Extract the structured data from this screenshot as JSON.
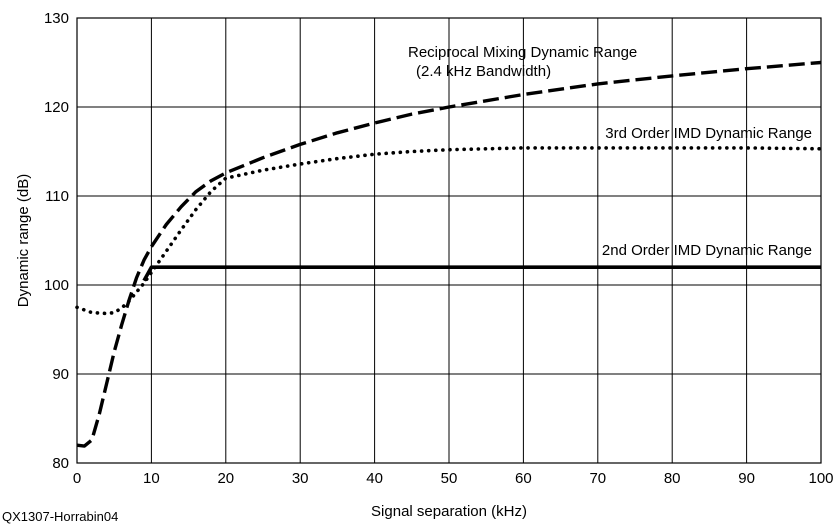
{
  "chart_data": {
    "type": "line",
    "xlabel": "Signal separation (kHz)",
    "ylabel": "Dynamic range (dB)",
    "xlim": [
      0,
      100
    ],
    "ylim": [
      80,
      130
    ],
    "xticks": [
      0,
      10,
      20,
      30,
      40,
      50,
      60,
      70,
      80,
      90,
      100
    ],
    "yticks": [
      80,
      90,
      100,
      110,
      120,
      130
    ],
    "grid": true,
    "legend": "none",
    "credit": "QX1307-Horrabin04",
    "series": [
      {
        "name": "Reciprocal Mixing Dynamic Range",
        "subname": "(2.4 kHz Bandwidth)",
        "style": "dashed",
        "x": [
          0,
          1,
          2,
          3,
          4,
          5,
          6,
          7,
          8,
          9,
          10,
          12,
          14,
          16,
          18,
          20,
          25,
          30,
          35,
          40,
          45,
          50,
          60,
          70,
          80,
          90,
          100
        ],
        "y": [
          82,
          81.9,
          82.6,
          85.5,
          89,
          92.5,
          95.5,
          98.3,
          100.8,
          102.8,
          104.3,
          106.8,
          108.8,
          110.5,
          111.7,
          112.6,
          114.3,
          115.8,
          117.1,
          118.2,
          119.2,
          120.0,
          121.4,
          122.6,
          123.5,
          124.3,
          125.0
        ]
      },
      {
        "name": "3rd Order IMD Dynamic Range",
        "style": "dotted",
        "x": [
          0,
          2,
          4,
          5,
          6,
          7,
          8,
          9,
          10,
          12,
          14,
          16,
          18,
          20,
          25,
          30,
          35,
          40,
          45,
          50,
          60,
          70,
          80,
          90,
          100
        ],
        "y": [
          97.5,
          96.9,
          96.8,
          96.9,
          97.4,
          98.2,
          99.2,
          100.2,
          101.4,
          103.8,
          106.2,
          108.5,
          110.5,
          112.0,
          112.9,
          113.6,
          114.2,
          114.7,
          115.0,
          115.2,
          115.4,
          115.4,
          115.4,
          115.4,
          115.3
        ]
      },
      {
        "name": "2nd Order IMD Dynamic Range",
        "style": "solid",
        "x": [
          9,
          10,
          100
        ],
        "y": [
          100.5,
          102,
          102
        ]
      }
    ]
  }
}
